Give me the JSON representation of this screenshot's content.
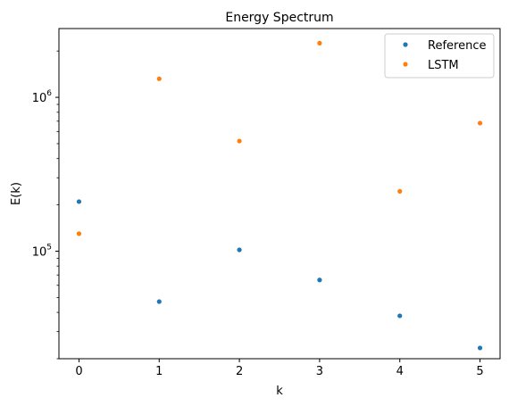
{
  "chart_data": {
    "type": "scatter",
    "title": "Energy Spectrum",
    "xlabel": "k",
    "ylabel": "E(k)",
    "xscale": "linear",
    "yscale": "log",
    "xlim": [
      -0.25,
      5.25
    ],
    "ylim": [
      20000,
      2800000
    ],
    "x_ticks": [
      0,
      1,
      2,
      3,
      4,
      5
    ],
    "x_tick_labels": [
      "0",
      "1",
      "2",
      "3",
      "4",
      "5"
    ],
    "y_major_ticks": [
      {
        "value": 100000,
        "base": "10",
        "exp": "5"
      },
      {
        "value": 1000000,
        "base": "10",
        "exp": "6"
      }
    ],
    "y_minor_ticks": [
      20000,
      30000,
      40000,
      50000,
      60000,
      70000,
      80000,
      90000,
      200000,
      300000,
      400000,
      500000,
      600000,
      700000,
      800000,
      900000,
      2000000
    ],
    "legend_position": "top-right",
    "grid": false,
    "series": [
      {
        "name": "Reference",
        "color": "#1f77b4",
        "x": [
          0,
          1,
          2,
          3,
          4,
          5
        ],
        "y": [
          210000,
          47000,
          102000,
          65000,
          38000,
          23500
        ]
      },
      {
        "name": "LSTM",
        "color": "#ff7f0e",
        "x": [
          0,
          1,
          2,
          3,
          4,
          5
        ],
        "y": [
          130000,
          1320000,
          520000,
          2250000,
          245000,
          680000
        ]
      }
    ]
  }
}
